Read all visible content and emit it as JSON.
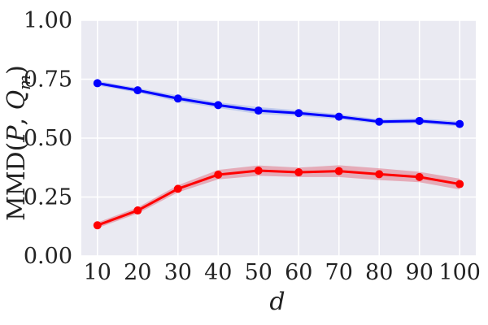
{
  "chart_data": {
    "type": "line",
    "title": "",
    "xlabel": "d",
    "ylabel": "MMD(P, Q_m)",
    "ylabel_parts": {
      "prefix": "MMD(",
      "p": "P",
      "sep": ", ",
      "q": "Q",
      "sub": "m",
      "suffix": ")"
    },
    "x": [
      10,
      20,
      30,
      40,
      50,
      60,
      70,
      80,
      90,
      100
    ],
    "x_tick_labels": [
      "10",
      "20",
      "30",
      "40",
      "50",
      "60",
      "70",
      "80",
      "90",
      "100"
    ],
    "ylim": [
      0,
      1
    ],
    "y_ticks": [
      0,
      0.25,
      0.5,
      0.75,
      1.0
    ],
    "y_tick_labels": [
      "0.00",
      "0.25",
      "0.50",
      "0.75",
      "1.00"
    ],
    "grid": true,
    "series": [
      {
        "color": "#0000ff",
        "band_color": "#8fa7e6",
        "values": [
          0.733,
          0.703,
          0.668,
          0.64,
          0.617,
          0.606,
          0.591,
          0.57,
          0.573,
          0.56
        ],
        "lower": [
          0.723,
          0.693,
          0.655,
          0.628,
          0.602,
          0.594,
          0.58,
          0.56,
          0.562,
          0.549
        ],
        "upper": [
          0.743,
          0.713,
          0.681,
          0.652,
          0.632,
          0.618,
          0.602,
          0.58,
          0.584,
          0.571
        ]
      },
      {
        "color": "#ff0000",
        "band_color": "#e06070",
        "values": [
          0.13,
          0.193,
          0.285,
          0.345,
          0.362,
          0.355,
          0.36,
          0.347,
          0.335,
          0.305
        ],
        "lower": [
          0.118,
          0.18,
          0.27,
          0.325,
          0.34,
          0.335,
          0.335,
          0.322,
          0.313,
          0.282
        ],
        "upper": [
          0.142,
          0.206,
          0.3,
          0.365,
          0.384,
          0.375,
          0.385,
          0.372,
          0.357,
          0.328
        ]
      }
    ],
    "colors": {
      "background": "#eaeaf2",
      "grid": "#ffffff"
    }
  }
}
